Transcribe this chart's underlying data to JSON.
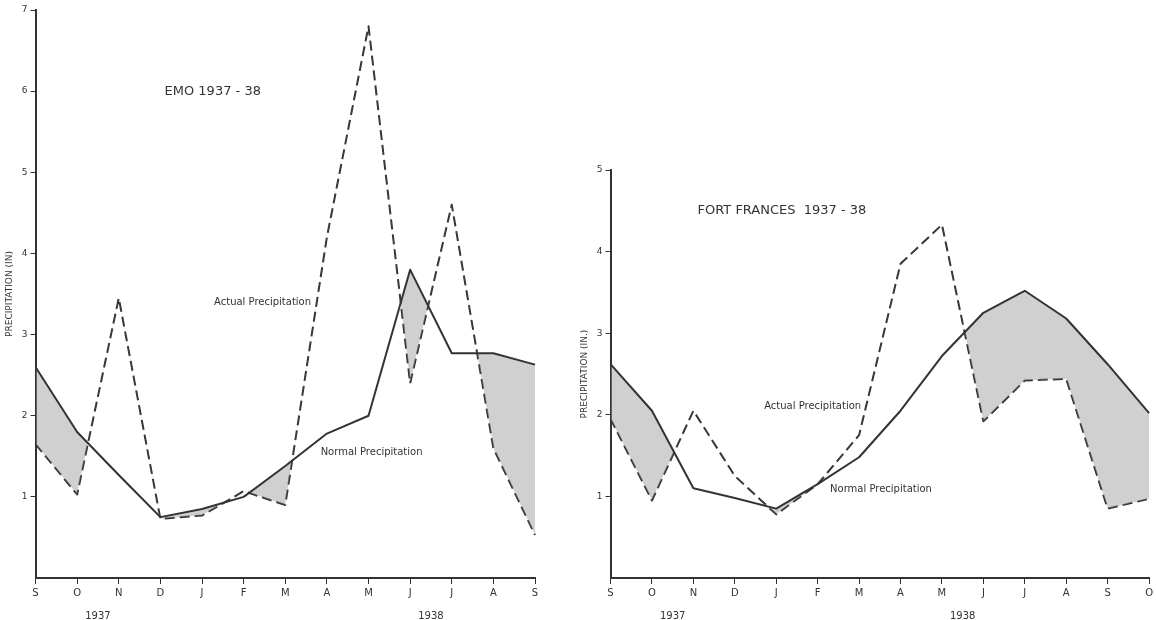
{
  "chart_data": [
    {
      "type": "line",
      "title": "EMO 1937 - 38",
      "ylabel": "PRECIPITATION (IN)",
      "categories": [
        "S",
        "O",
        "N",
        "D",
        "J",
        "F",
        "M",
        "A",
        "M",
        "J",
        "J",
        "A",
        "S"
      ],
      "series": [
        {
          "name": "Normal Precipitation",
          "color": "#333333",
          "line_style": "solid",
          "values": [
            2.6,
            1.8,
            1.27,
            0.75,
            0.85,
            1.0,
            1.38,
            1.78,
            2.0,
            3.8,
            2.77,
            2.77,
            2.63
          ]
        },
        {
          "name": "Actual Precipitation",
          "color": "#333333",
          "line_style": "dashed",
          "values": [
            1.65,
            1.03,
            3.45,
            0.73,
            0.77,
            1.07,
            0.9,
            4.2,
            6.8,
            2.4,
            4.6,
            1.6,
            0.53
          ]
        }
      ],
      "ylim": [
        0,
        7
      ],
      "yticks": [
        1,
        2,
        3,
        4,
        5,
        6,
        7
      ],
      "grid": false,
      "legend": false,
      "marker": "none",
      "annotations": [
        "1937",
        "1938"
      ]
    },
    {
      "type": "line",
      "title": "FORT FRANCES  1937 - 38",
      "ylabel": "PRECIPITATION (IN.)",
      "categories": [
        "S",
        "O",
        "N",
        "D",
        "J",
        "F",
        "M",
        "A",
        "M",
        "J",
        "J",
        "A",
        "S",
        "O"
      ],
      "series": [
        {
          "name": "Normal Precipitation",
          "color": "#333333",
          "line_style": "solid",
          "values": [
            2.62,
            2.05,
            1.1,
            0.98,
            0.85,
            1.15,
            1.48,
            2.05,
            2.72,
            3.25,
            3.52,
            3.18,
            2.62,
            2.02
          ]
        },
        {
          "name": "Actual Precipitation",
          "color": "#333333",
          "line_style": "dashed",
          "values": [
            1.95,
            0.95,
            2.05,
            1.25,
            0.78,
            1.15,
            1.75,
            3.85,
            4.33,
            1.92,
            2.42,
            2.44,
            0.85,
            0.97
          ]
        }
      ],
      "ylim": [
        0,
        5
      ],
      "yticks": [
        1,
        2,
        3,
        4,
        5
      ],
      "grid": false,
      "legend": false,
      "marker": "none",
      "annotations": [
        "1937",
        "1938"
      ]
    }
  ]
}
